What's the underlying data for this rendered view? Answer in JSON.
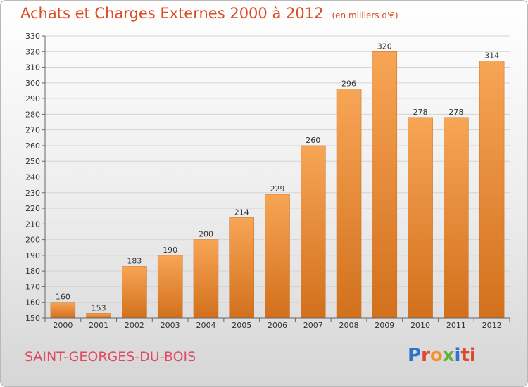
{
  "header": {
    "title": "Achats et Charges Externes 2000 à 2012",
    "unit": "(en milliers d'€)"
  },
  "footer": {
    "commune": "SAINT-GEORGES-DU-BOIS",
    "logo": "Proxiti"
  },
  "colors": {
    "bar_top": "#f7a556",
    "bar_bottom": "#d2701c",
    "title": "#dc4b22",
    "commune": "#e04a63"
  },
  "chart_data": {
    "type": "bar",
    "title": "Achats et Charges Externes 2000 à 2012",
    "unit": "(en milliers d'€)",
    "categories": [
      "2000",
      "2001",
      "2002",
      "2003",
      "2004",
      "2005",
      "2006",
      "2007",
      "2008",
      "2009",
      "2010",
      "2011",
      "2012"
    ],
    "values": [
      160,
      153,
      183,
      190,
      200,
      214,
      229,
      260,
      296,
      320,
      278,
      278,
      314
    ],
    "ylim": [
      150,
      330
    ],
    "yticks": [
      150,
      160,
      170,
      180,
      190,
      200,
      210,
      220,
      230,
      240,
      250,
      260,
      270,
      280,
      290,
      300,
      310,
      320,
      330
    ],
    "grid": true
  }
}
